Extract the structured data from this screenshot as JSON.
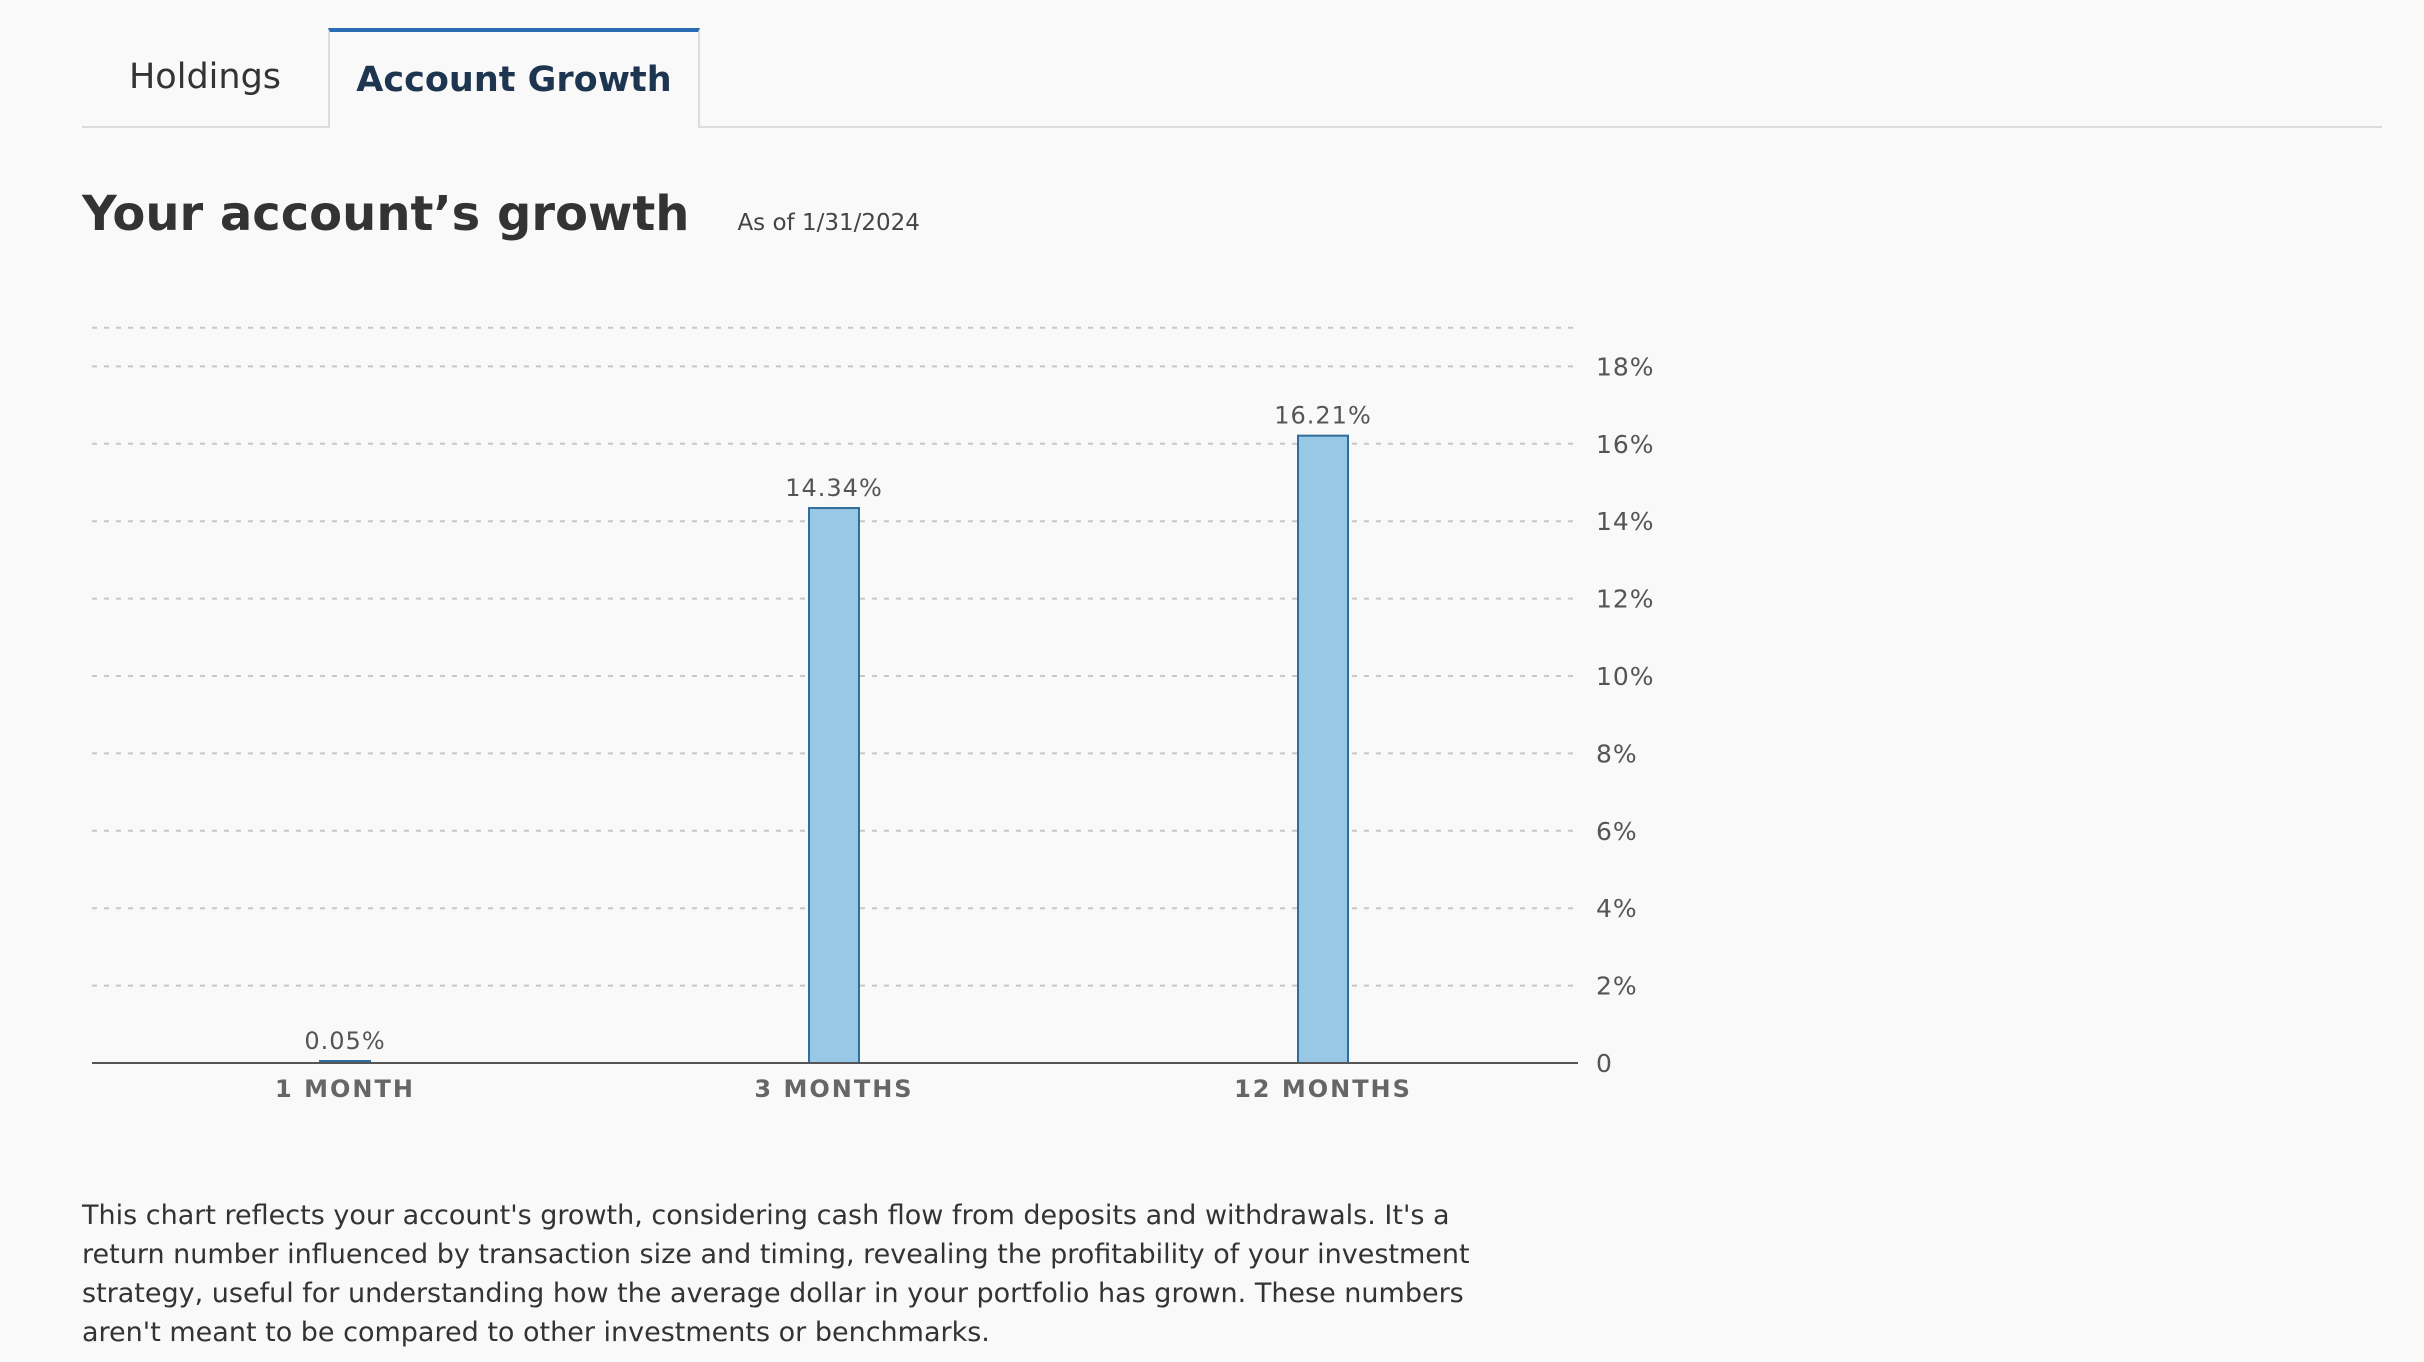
{
  "tabs": [
    {
      "label": "Holdings",
      "active": false
    },
    {
      "label": "Account Growth",
      "active": true
    }
  ],
  "header": {
    "title": "Your account’s growth",
    "as_of": "As of 1/31/2024"
  },
  "chart_data": {
    "type": "bar",
    "categories": [
      "1 MONTH",
      "3 MONTHS",
      "12 MONTHS"
    ],
    "values": [
      0.05,
      14.34,
      16.21
    ],
    "value_labels": [
      "0.05%",
      "14.34%",
      "16.21%"
    ],
    "ylim": [
      0,
      19
    ],
    "yticks": [
      0,
      2,
      4,
      6,
      8,
      10,
      12,
      14,
      16,
      18
    ],
    "ytick_labels": [
      "0",
      "2%",
      "4%",
      "6%",
      "8%",
      "10%",
      "12%",
      "14%",
      "16%",
      "18%"
    ],
    "y_axis_position": "right",
    "grid": true,
    "bar_color": "#98c8e5",
    "bar_edge_color": "#2f6d9c"
  },
  "description": "This chart reflects your account's growth, considering cash flow from deposits and withdrawals. It's a return number influenced by transaction size and timing, revealing the profitability of your investment strategy, useful for understanding how the average dollar in your portfolio has grown. These numbers aren't meant to be compared to other investments or benchmarks."
}
